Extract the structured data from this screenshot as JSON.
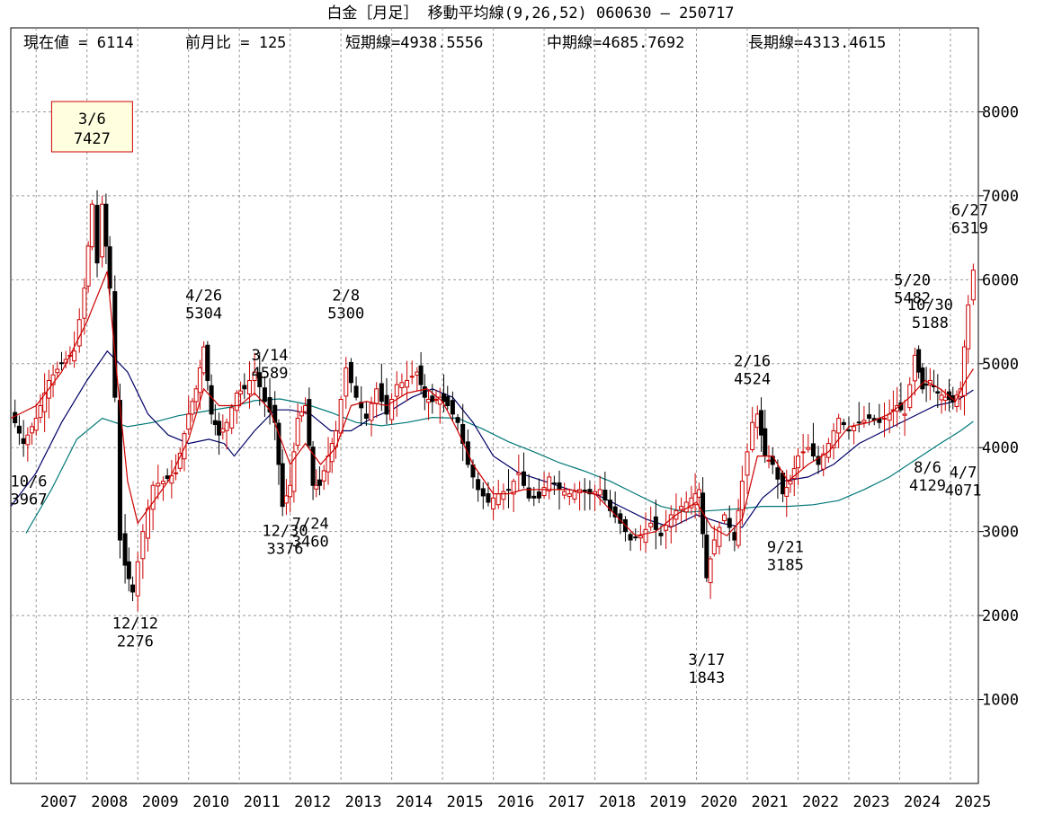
{
  "header": {
    "title": "白金［月足］ 移動平均線(9,26,52)  060630 – 250717",
    "current_label": "現在値 = 6114",
    "change_label": "前月比 = 125",
    "short_label": "短期線=4938.5556",
    "mid_label": "中期線=4685.7692",
    "long_label": "長期線=4313.4615"
  },
  "chart_data": {
    "type": "candlestick",
    "x_range": [
      2006.5,
      2025.55
    ],
    "ylim": [
      0,
      9000
    ],
    "y_ticks": [
      1000,
      2000,
      3000,
      4000,
      5000,
      6000,
      7000,
      8000
    ],
    "x_tick_labels": [
      "2007",
      "2008",
      "2009",
      "2010",
      "2011",
      "2012",
      "2013",
      "2014",
      "2015",
      "2016",
      "2017",
      "2018",
      "2019",
      "2020",
      "2021",
      "2022",
      "2023",
      "2024",
      "2025"
    ],
    "x_tick_values": [
      2007,
      2008,
      2009,
      2010,
      2011,
      2012,
      2013,
      2014,
      2015,
      2016,
      2017,
      2018,
      2019,
      2020,
      2021,
      2022,
      2023,
      2024,
      2025
    ],
    "grid": true,
    "colors": {
      "up": "#cc0000",
      "down": "#000000",
      "short_ma": "#cc0000",
      "mid_ma": "#000066",
      "long_ma": "#007777",
      "grid": "#999999"
    },
    "close_points": [
      [
        2006.5,
        4420
      ],
      [
        2006.75,
        4050
      ],
      [
        2007.0,
        4350
      ],
      [
        2007.25,
        4800
      ],
      [
        2007.5,
        5000
      ],
      [
        2007.75,
        5150
      ],
      [
        2007.95,
        5900
      ],
      [
        2008.1,
        6900
      ],
      [
        2008.2,
        6200
      ],
      [
        2008.3,
        6900
      ],
      [
        2008.45,
        5900
      ],
      [
        2008.55,
        4600
      ],
      [
        2008.65,
        2900
      ],
      [
        2008.75,
        2600
      ],
      [
        2008.9,
        2280
      ],
      [
        2009.1,
        3000
      ],
      [
        2009.3,
        3550
      ],
      [
        2009.5,
        3600
      ],
      [
        2009.75,
        3700
      ],
      [
        2010.0,
        4400
      ],
      [
        2010.15,
        4700
      ],
      [
        2010.3,
        5200
      ],
      [
        2010.45,
        4400
      ],
      [
        2010.6,
        4150
      ],
      [
        2010.75,
        4300
      ],
      [
        2010.95,
        4650
      ],
      [
        2011.1,
        4700
      ],
      [
        2011.3,
        4900
      ],
      [
        2011.5,
        4550
      ],
      [
        2011.7,
        4300
      ],
      [
        2011.85,
        3300
      ],
      [
        2012.0,
        3550
      ],
      [
        2012.15,
        4350
      ],
      [
        2012.3,
        4500
      ],
      [
        2012.45,
        3550
      ],
      [
        2012.58,
        3550
      ],
      [
        2012.75,
        3900
      ],
      [
        2012.9,
        4200
      ],
      [
        2013.1,
        4950
      ],
      [
        2013.3,
        4600
      ],
      [
        2013.5,
        4350
      ],
      [
        2013.7,
        4700
      ],
      [
        2013.9,
        4400
      ],
      [
        2014.1,
        4750
      ],
      [
        2014.3,
        4800
      ],
      [
        2014.5,
        4900
      ],
      [
        2014.65,
        4600
      ],
      [
        2014.8,
        4550
      ],
      [
        2014.95,
        4600
      ],
      [
        2015.1,
        4500
      ],
      [
        2015.3,
        4300
      ],
      [
        2015.5,
        3800
      ],
      [
        2015.7,
        3500
      ],
      [
        2015.9,
        3350
      ],
      [
        2016.1,
        3450
      ],
      [
        2016.3,
        3500
      ],
      [
        2016.5,
        3700
      ],
      [
        2016.7,
        3400
      ],
      [
        2016.9,
        3400
      ],
      [
        2017.1,
        3650
      ],
      [
        2017.3,
        3500
      ],
      [
        2017.5,
        3450
      ],
      [
        2017.7,
        3500
      ],
      [
        2017.9,
        3450
      ],
      [
        2018.1,
        3500
      ],
      [
        2018.3,
        3250
      ],
      [
        2018.5,
        3100
      ],
      [
        2018.7,
        2900
      ],
      [
        2018.9,
        2950
      ],
      [
        2019.1,
        3100
      ],
      [
        2019.3,
        2950
      ],
      [
        2019.5,
        3200
      ],
      [
        2019.7,
        3300
      ],
      [
        2019.9,
        3400
      ],
      [
        2020.05,
        3500
      ],
      [
        2020.2,
        2450
      ],
      [
        2020.35,
        2900
      ],
      [
        2020.55,
        3200
      ],
      [
        2020.75,
        2900
      ],
      [
        2020.9,
        3600
      ],
      [
        2021.1,
        4300
      ],
      [
        2021.2,
        4400
      ],
      [
        2021.35,
        3900
      ],
      [
        2021.5,
        3800
      ],
      [
        2021.7,
        3450
      ],
      [
        2021.85,
        3600
      ],
      [
        2022.0,
        3900
      ],
      [
        2022.2,
        4000
      ],
      [
        2022.4,
        3800
      ],
      [
        2022.6,
        4050
      ],
      [
        2022.8,
        4350
      ],
      [
        2023.0,
        4200
      ],
      [
        2023.2,
        4300
      ],
      [
        2023.4,
        4350
      ],
      [
        2023.6,
        4300
      ],
      [
        2023.8,
        4400
      ],
      [
        2023.95,
        4500
      ],
      [
        2024.1,
        4400
      ],
      [
        2024.3,
        5100
      ],
      [
        2024.45,
        4700
      ],
      [
        2024.6,
        4800
      ],
      [
        2024.75,
        4650
      ],
      [
        2024.9,
        4600
      ],
      [
        2025.05,
        4550
      ],
      [
        2025.2,
        4700
      ],
      [
        2025.35,
        5700
      ],
      [
        2025.45,
        6114
      ]
    ],
    "short_ma_points": [
      [
        2006.5,
        4350
      ],
      [
        2007.0,
        4500
      ],
      [
        2007.5,
        4900
      ],
      [
        2008.0,
        5500
      ],
      [
        2008.4,
        6100
      ],
      [
        2008.6,
        4800
      ],
      [
        2008.8,
        3600
      ],
      [
        2009.0,
        3100
      ],
      [
        2009.3,
        3350
      ],
      [
        2009.6,
        3600
      ],
      [
        2010.0,
        4100
      ],
      [
        2010.3,
        4700
      ],
      [
        2010.6,
        4500
      ],
      [
        2011.0,
        4500
      ],
      [
        2011.3,
        4650
      ],
      [
        2011.6,
        4450
      ],
      [
        2012.0,
        3800
      ],
      [
        2012.3,
        4050
      ],
      [
        2012.6,
        3800
      ],
      [
        2012.9,
        4000
      ],
      [
        2013.2,
        4500
      ],
      [
        2013.5,
        4550
      ],
      [
        2013.9,
        4500
      ],
      [
        2014.3,
        4650
      ],
      [
        2014.7,
        4700
      ],
      [
        2015.0,
        4550
      ],
      [
        2015.3,
        4200
      ],
      [
        2015.6,
        3800
      ],
      [
        2016.0,
        3450
      ],
      [
        2016.3,
        3450
      ],
      [
        2016.6,
        3500
      ],
      [
        2017.0,
        3500
      ],
      [
        2017.5,
        3500
      ],
      [
        2018.0,
        3450
      ],
      [
        2018.4,
        3200
      ],
      [
        2018.8,
        2950
      ],
      [
        2019.2,
        3000
      ],
      [
        2019.6,
        3200
      ],
      [
        2020.0,
        3350
      ],
      [
        2020.3,
        3050
      ],
      [
        2020.6,
        2950
      ],
      [
        2020.9,
        3150
      ],
      [
        2021.2,
        3900
      ],
      [
        2021.5,
        3900
      ],
      [
        2021.8,
        3600
      ],
      [
        2022.2,
        3800
      ],
      [
        2022.6,
        3950
      ],
      [
        2023.0,
        4250
      ],
      [
        2023.4,
        4300
      ],
      [
        2023.8,
        4400
      ],
      [
        2024.2,
        4600
      ],
      [
        2024.5,
        4800
      ],
      [
        2024.8,
        4700
      ],
      [
        2025.1,
        4550
      ],
      [
        2025.3,
        4800
      ],
      [
        2025.45,
        4939
      ]
    ],
    "mid_ma_points": [
      [
        2006.5,
        3300
      ],
      [
        2007.0,
        3700
      ],
      [
        2007.5,
        4300
      ],
      [
        2008.0,
        4800
      ],
      [
        2008.4,
        5150
      ],
      [
        2008.8,
        4900
      ],
      [
        2009.2,
        4400
      ],
      [
        2009.6,
        4150
      ],
      [
        2010.0,
        4050
      ],
      [
        2010.4,
        4100
      ],
      [
        2010.7,
        4050
      ],
      [
        2010.9,
        3900
      ],
      [
        2011.3,
        4200
      ],
      [
        2011.7,
        4450
      ],
      [
        2012.0,
        4450
      ],
      [
        2012.4,
        4400
      ],
      [
        2012.8,
        4200
      ],
      [
        2013.2,
        4200
      ],
      [
        2013.6,
        4350
      ],
      [
        2014.0,
        4450
      ],
      [
        2014.4,
        4600
      ],
      [
        2014.8,
        4700
      ],
      [
        2015.2,
        4600
      ],
      [
        2015.6,
        4300
      ],
      [
        2016.0,
        3900
      ],
      [
        2016.5,
        3700
      ],
      [
        2017.0,
        3600
      ],
      [
        2017.5,
        3500
      ],
      [
        2018.0,
        3450
      ],
      [
        2018.5,
        3300
      ],
      [
        2019.0,
        3150
      ],
      [
        2019.5,
        3050
      ],
      [
        2020.0,
        3200
      ],
      [
        2020.5,
        3100
      ],
      [
        2020.9,
        3050
      ],
      [
        2021.3,
        3400
      ],
      [
        2021.7,
        3600
      ],
      [
        2022.2,
        3650
      ],
      [
        2022.7,
        3800
      ],
      [
        2023.2,
        4050
      ],
      [
        2023.7,
        4200
      ],
      [
        2024.2,
        4350
      ],
      [
        2024.7,
        4500
      ],
      [
        2025.1,
        4550
      ],
      [
        2025.45,
        4686
      ]
    ],
    "long_ma_points": [
      [
        2006.8,
        2980
      ],
      [
        2007.3,
        3500
      ],
      [
        2007.8,
        4100
      ],
      [
        2008.3,
        4350
      ],
      [
        2008.8,
        4250
      ],
      [
        2009.3,
        4300
      ],
      [
        2009.8,
        4380
      ],
      [
        2010.3,
        4430
      ],
      [
        2010.8,
        4480
      ],
      [
        2011.3,
        4560
      ],
      [
        2011.8,
        4580
      ],
      [
        2012.3,
        4520
      ],
      [
        2012.8,
        4420
      ],
      [
        2013.3,
        4300
      ],
      [
        2013.8,
        4260
      ],
      [
        2014.3,
        4300
      ],
      [
        2014.8,
        4360
      ],
      [
        2015.3,
        4350
      ],
      [
        2015.8,
        4220
      ],
      [
        2016.3,
        4070
      ],
      [
        2016.8,
        3950
      ],
      [
        2017.3,
        3820
      ],
      [
        2017.8,
        3720
      ],
      [
        2018.3,
        3600
      ],
      [
        2018.8,
        3450
      ],
      [
        2019.3,
        3300
      ],
      [
        2019.8,
        3230
      ],
      [
        2020.3,
        3250
      ],
      [
        2020.8,
        3270
      ],
      [
        2021.3,
        3300
      ],
      [
        2021.8,
        3300
      ],
      [
        2022.3,
        3320
      ],
      [
        2022.8,
        3370
      ],
      [
        2023.3,
        3500
      ],
      [
        2023.8,
        3650
      ],
      [
        2024.3,
        3850
      ],
      [
        2024.8,
        4050
      ],
      [
        2025.2,
        4200
      ],
      [
        2025.45,
        4313
      ]
    ],
    "annotations": [
      {
        "date": "3/6",
        "value": "7427",
        "x": 2008.1,
        "y": 7427,
        "pos": "boxed"
      },
      {
        "date": "4/26",
        "value": "5304",
        "x": 2010.3,
        "y": 5304,
        "pos": "above"
      },
      {
        "date": "3/14",
        "value": "4589",
        "x": 2011.6,
        "y": 4589,
        "pos": "above"
      },
      {
        "date": "2/8",
        "value": "5300",
        "x": 2013.1,
        "y": 5300,
        "pos": "above"
      },
      {
        "date": "2/16",
        "value": "4524",
        "x": 2021.1,
        "y": 4524,
        "pos": "above"
      },
      {
        "date": "5/20",
        "value": "5482",
        "x": 2024.25,
        "y": 5482,
        "pos": "above"
      },
      {
        "date": "10/30",
        "value": "5188",
        "x": 2024.6,
        "y": 5188,
        "pos": "above"
      },
      {
        "date": "6/27",
        "value": "6319",
        "x": 2025.38,
        "y": 6319,
        "pos": "above"
      },
      {
        "date": "10/6",
        "value": "3967",
        "x": 2006.65,
        "y": 3967,
        "pos": "below"
      },
      {
        "date": "12/12",
        "value": "2276",
        "x": 2008.95,
        "y": 2276,
        "pos": "below"
      },
      {
        "date": "12/30",
        "value": "3376",
        "x": 2011.9,
        "y": 3376,
        "pos": "below"
      },
      {
        "date": "7/24",
        "value": "3460",
        "x": 2012.4,
        "y": 3460,
        "pos": "below"
      },
      {
        "date": "3/17",
        "value": "1843",
        "x": 2020.2,
        "y": 1843,
        "pos": "below"
      },
      {
        "date": "9/21",
        "value": "3185",
        "x": 2021.75,
        "y": 3185,
        "pos": "below"
      },
      {
        "date": "8/6",
        "value": "4129",
        "x": 2024.55,
        "y": 4129,
        "pos": "below"
      },
      {
        "date": "4/7",
        "value": "4071",
        "x": 2025.25,
        "y": 4071,
        "pos": "below"
      }
    ]
  }
}
